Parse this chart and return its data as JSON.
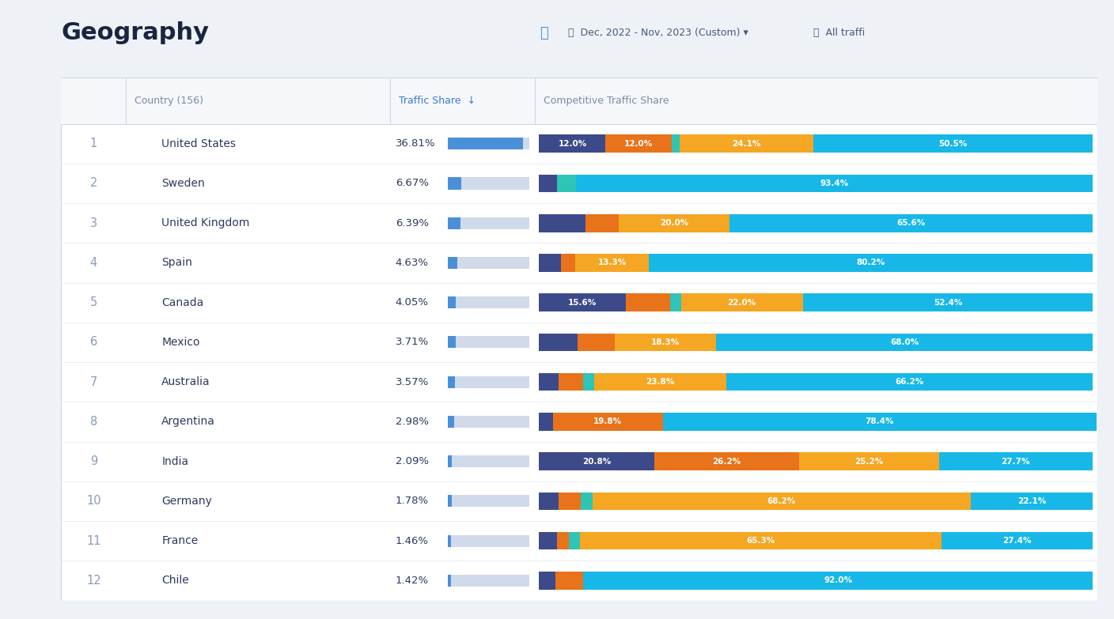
{
  "title": "Geography",
  "header_date": "Dec, 2022 - Nov, 2023 (Custom)",
  "header_traffic": "All traffi",
  "col_country_header": "Country (156)",
  "col_traffic_header": "Traffic Share",
  "col_competitive_header": "Competitive Traffic Share",
  "background_color": "#eef1f6",
  "table_bg": "#ffffff",
  "header_bg": "#f5f7fa",
  "row_border": "#e4e8f0",
  "countries": [
    "United States",
    "Sweden",
    "United Kingdom",
    "Spain",
    "Canada",
    "Mexico",
    "Australia",
    "Argentina",
    "India",
    "Germany",
    "France",
    "Chile"
  ],
  "ranks": [
    1,
    2,
    3,
    4,
    5,
    6,
    7,
    8,
    9,
    10,
    11,
    12
  ],
  "traffic_shares": [
    36.81,
    6.67,
    6.39,
    4.63,
    4.05,
    3.71,
    3.57,
    2.98,
    2.09,
    1.78,
    1.46,
    1.42
  ],
  "max_traffic": 40.0,
  "segments": [
    [
      12.0,
      12.0,
      1.4,
      24.1,
      50.5
    ],
    [
      3.2,
      0.0,
      3.4,
      0.0,
      93.4
    ],
    [
      8.4,
      6.0,
      0.0,
      20.0,
      65.6
    ],
    [
      4.0,
      2.5,
      0.0,
      13.3,
      80.2
    ],
    [
      15.6,
      8.0,
      2.0,
      22.0,
      52.4
    ],
    [
      7.0,
      6.7,
      0.0,
      18.3,
      68.0
    ],
    [
      3.5,
      4.5,
      2.0,
      23.8,
      66.2
    ],
    [
      2.5,
      19.8,
      0.0,
      0.0,
      78.4
    ],
    [
      20.8,
      26.2,
      0.0,
      25.2,
      27.7
    ],
    [
      3.5,
      4.0,
      2.2,
      68.2,
      22.1
    ],
    [
      3.2,
      2.1,
      2.0,
      65.3,
      27.4
    ],
    [
      3.0,
      5.0,
      0.0,
      0.0,
      92.0
    ]
  ],
  "segment_labels": [
    [
      "12.0%",
      "12.0%",
      "",
      "24.1%",
      "50.5%"
    ],
    [
      "",
      "",
      "",
      "",
      "93.4%"
    ],
    [
      "",
      "",
      "",
      "20.0%",
      "65.6%"
    ],
    [
      "",
      "",
      "",
      "13.3%",
      "80.2%"
    ],
    [
      "15.6%",
      "",
      "",
      "22.0%",
      "52.4%"
    ],
    [
      "",
      "",
      "",
      "18.3%",
      "68.0%"
    ],
    [
      "",
      "",
      "",
      "23.8%",
      "66.2%"
    ],
    [
      "",
      "19.8%",
      "",
      "",
      "78.4%"
    ],
    [
      "20.8%",
      "26.2%",
      "",
      "25.2%",
      "27.7%"
    ],
    [
      "",
      "",
      "",
      "68.2%",
      "22.1%"
    ],
    [
      "",
      "",
      "",
      "65.3%",
      "27.4%"
    ],
    [
      "",
      "",
      "",
      "",
      "92.0%"
    ]
  ],
  "seg_colors": [
    "#3d4a8a",
    "#e8731a",
    "#2ec4b6",
    "#f5a623",
    "#17b8e8"
  ],
  "traffic_bar_color": "#4a90d9",
  "traffic_bar_bg": "#d0daea"
}
